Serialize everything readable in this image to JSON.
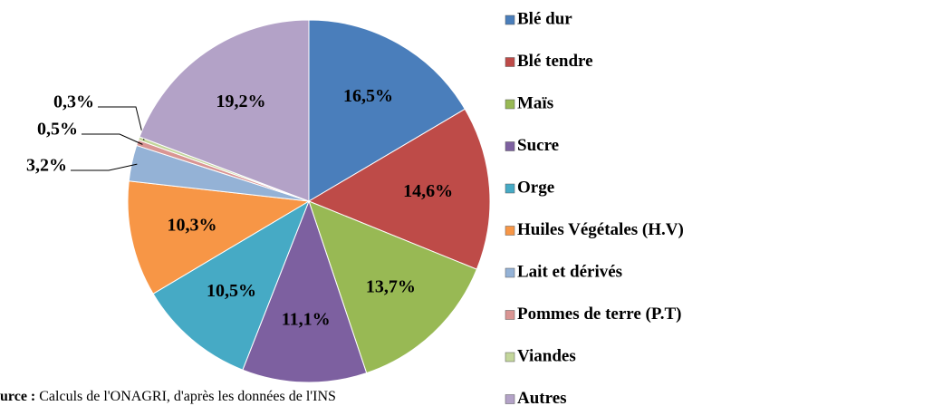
{
  "chart_data": {
    "type": "pie",
    "categories": [
      "Blé dur",
      "Blé tendre",
      "Maïs",
      "Sucre",
      "Orge",
      "Huiles Végétales (H.V)",
      "Lait et dérivés",
      "Pommes de terre (P.T)",
      "Viandes",
      "Autres"
    ],
    "values": [
      16.5,
      14.6,
      13.7,
      11.1,
      10.5,
      10.3,
      3.2,
      0.5,
      0.3,
      19.2
    ],
    "value_labels": [
      "16,5%",
      "14,6%",
      "13,7%",
      "11,1%",
      "10,5%",
      "10,3%",
      "3,2%",
      "0,5%",
      "0,3%",
      "19,2%"
    ],
    "colors": [
      "#4a7ebb",
      "#be4b48",
      "#98b954",
      "#7d60a0",
      "#46aac5",
      "#f79646",
      "#94b2d6",
      "#d99593",
      "#c3d69b",
      "#b3a2c7"
    ],
    "source_label": "urce :",
    "source_text": "Calculs de l'ONAGRI, d'après les données de l'INS",
    "legend": "right"
  }
}
